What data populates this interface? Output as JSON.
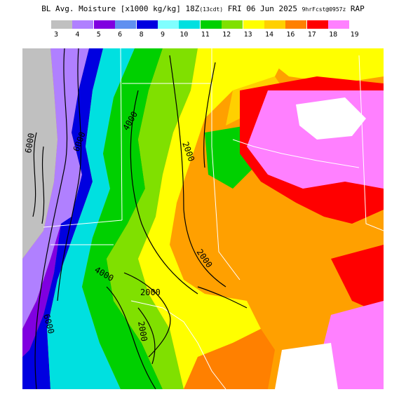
{
  "title": {
    "main": "BL Avg. Moisture [x1000 kg/kg] 18Z",
    "cycle": "(13cdt)",
    "date": "FRI 06 Jun 2025",
    "forecast": "9hrFcst@0957z",
    "model": "RAP"
  },
  "legend": {
    "ticks": [
      "3",
      "4",
      "5",
      "6",
      "8",
      "9",
      "10",
      "11",
      "12",
      "13",
      "14",
      "16",
      "17",
      "18",
      "19"
    ],
    "colors": [
      "#c0c0c0",
      "#b080ff",
      "#8000e0",
      "#6090f0",
      "#0000e0",
      "#80ffff",
      "#00e0e0",
      "#00d000",
      "#80e000",
      "#ffff00",
      "#ffd000",
      "#ff8000",
      "#ff0000",
      "#ff80ff"
    ]
  },
  "map": {
    "contour_labels": [
      "6000",
      "4000",
      "2000",
      "2000",
      "2000",
      "4000",
      "2000",
      "6000",
      "6000"
    ]
  }
}
